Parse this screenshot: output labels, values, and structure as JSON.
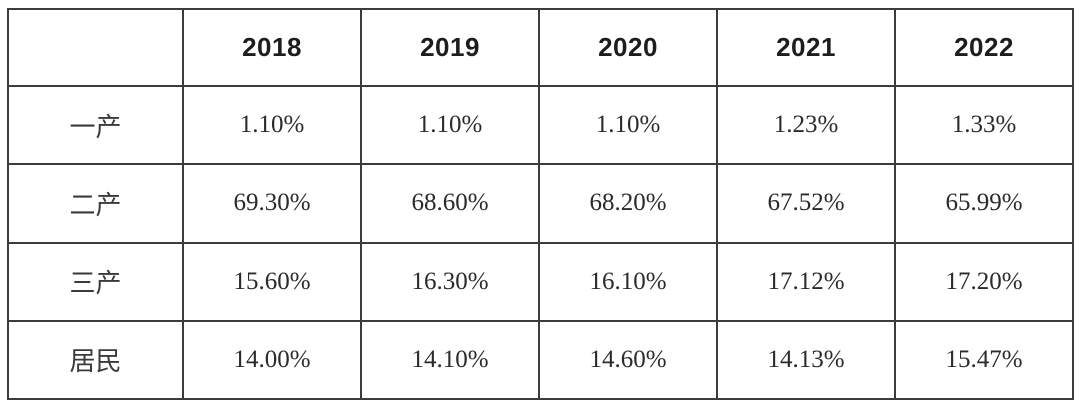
{
  "colors": {
    "background": "#ffffff",
    "border": "#3c3c3c",
    "header_text": "#1d1d1f",
    "body_text": "#2b2b2d"
  },
  "table": {
    "corner_label": "",
    "columns": [
      "2018",
      "2019",
      "2020",
      "2021",
      "2022"
    ],
    "rows": [
      {
        "label": "一产",
        "values": [
          "1.10%",
          "1.10%",
          "1.10%",
          "1.23%",
          "1.33%"
        ]
      },
      {
        "label": "二产",
        "values": [
          "69.30%",
          "68.60%",
          "68.20%",
          "67.52%",
          "65.99%"
        ]
      },
      {
        "label": "三产",
        "values": [
          "15.60%",
          "16.30%",
          "16.10%",
          "17.12%",
          "17.20%"
        ]
      },
      {
        "label": "居民",
        "values": [
          "14.00%",
          "14.10%",
          "14.60%",
          "14.13%",
          "15.47%"
        ]
      }
    ]
  },
  "chart_data": {
    "type": "table",
    "title": "",
    "categories": [
      "2018",
      "2019",
      "2020",
      "2021",
      "2022"
    ],
    "series": [
      {
        "name": "一产",
        "values": [
          1.1,
          1.1,
          1.1,
          1.23,
          1.33
        ]
      },
      {
        "name": "二产",
        "values": [
          69.3,
          68.6,
          68.2,
          67.52,
          65.99
        ]
      },
      {
        "name": "三产",
        "values": [
          15.6,
          16.3,
          16.1,
          17.12,
          17.2
        ]
      },
      {
        "name": "居民",
        "values": [
          14.0,
          14.1,
          14.6,
          14.13,
          15.47
        ]
      }
    ],
    "unit": "percent",
    "layout": "rows are sectors (primary industry, secondary industry, tertiary industry, residents); columns are years; grid borders on"
  }
}
